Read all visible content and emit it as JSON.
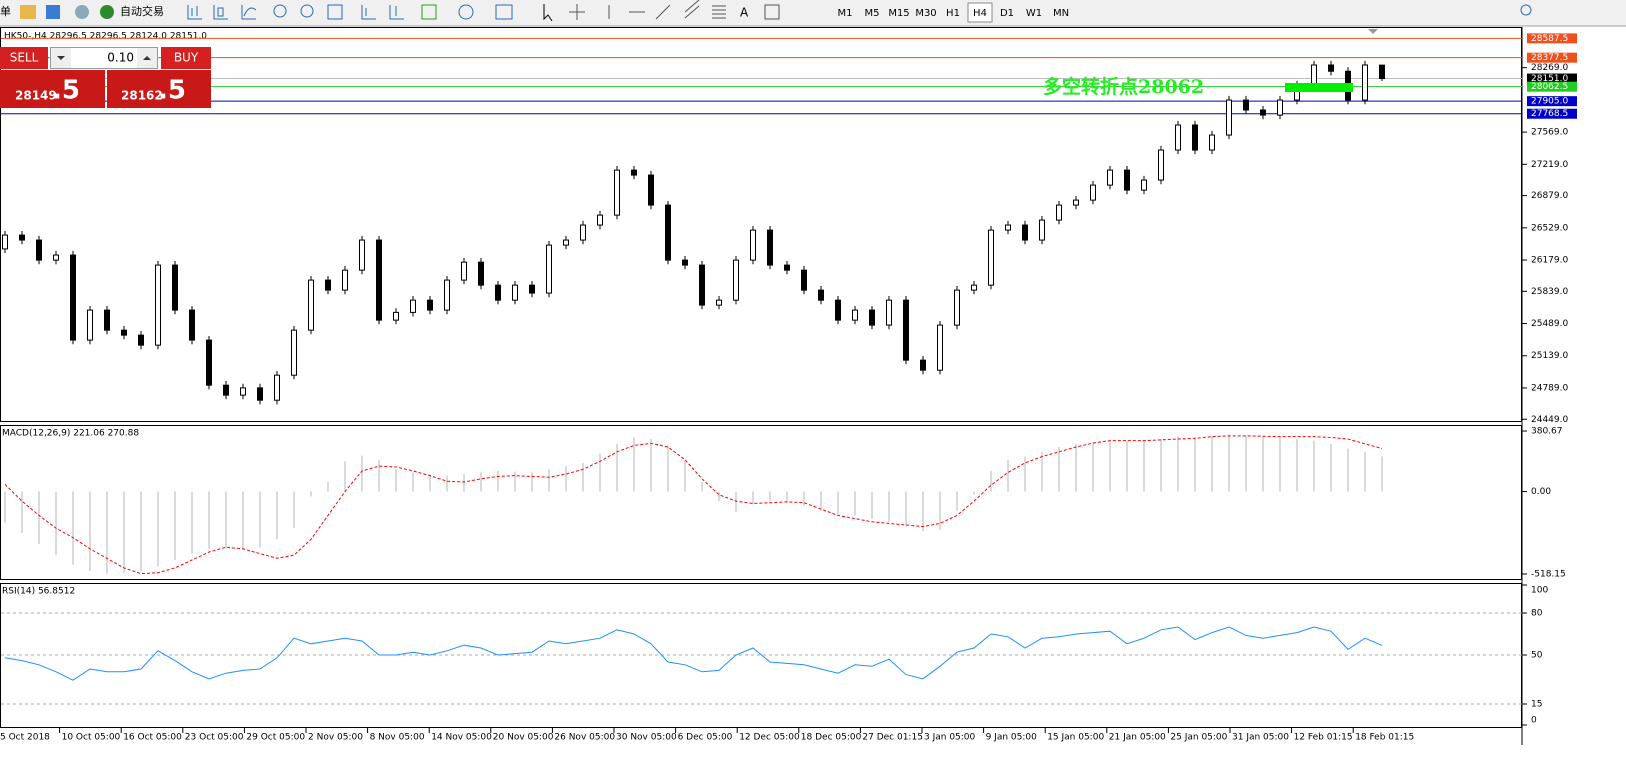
{
  "toolbar": {
    "left_text": "单",
    "auto_trade": "自动交易",
    "timeframes": [
      "M1",
      "M5",
      "M15",
      "M30",
      "H1",
      "H4",
      "D1",
      "W1",
      "MN"
    ],
    "active_timeframe": "H4"
  },
  "trade_panel": {
    "sell": "SELL",
    "buy": "BUY",
    "volume": "0.10",
    "sell_main": "28149",
    "sell_frac": ".5",
    "buy_main": "28162",
    "buy_frac": ".5"
  },
  "chart_data": {
    "type": "candlestick",
    "title": "HK50-,H4  28296.5 28296.5 28124.0 28151.0",
    "ylim": [
      24430,
      28700
    ],
    "yticks": [
      {
        "value": 28269,
        "label": "28269.0"
      },
      {
        "value": 27569,
        "label": "27569.0"
      },
      {
        "value": 27219,
        "label": "27219.0"
      },
      {
        "value": 26879,
        "label": "26879.0"
      },
      {
        "value": 26529,
        "label": "26529.0"
      },
      {
        "value": 26179,
        "label": "26179.0"
      },
      {
        "value": 25839,
        "label": "25839.0"
      },
      {
        "value": 25489,
        "label": "25489.0"
      },
      {
        "value": 25139,
        "label": "25139.0"
      },
      {
        "value": 24789,
        "label": "24789.0"
      },
      {
        "value": 24449,
        "label": "24449.0"
      }
    ],
    "price_lines": [
      {
        "value": 28587.5,
        "color": "#f0501e"
      },
      {
        "value": 28377.5,
        "color": "#f0501e"
      },
      {
        "value": 28151,
        "label": "28151.0",
        "color": "#000000"
      },
      {
        "value": 28062.5,
        "color": "#22cc22"
      },
      {
        "value": 27905,
        "label": "27905.0",
        "color": "#0000cc"
      },
      {
        "value": 27768.5,
        "color": "#0000cc"
      }
    ],
    "annotation": "多空转折点28062",
    "x_labels": [
      "5 Oct 2018",
      "10 Oct 05:00",
      "16 Oct 05:00",
      "23 Oct 05:00",
      "29 Oct 05:00",
      "2 Nov 05:00",
      "8 Nov 05:00",
      "14 Nov 05:00",
      "20 Nov 05:00",
      "26 Nov 05:00",
      "30 Nov 05:00",
      "6 Dec 05:00",
      "12 Dec 05:00",
      "18 Dec 05:00",
      "27 Dec 01:15",
      "3 Jan 05:00",
      "9 Jan 05:00",
      "15 Jan 05:00",
      "21 Jan 05:00",
      "25 Jan 05:00",
      "31 Jan 05:00",
      "12 Feb 01:15",
      "18 Feb 01:15"
    ],
    "open": [
      26300,
      26450,
      26396,
      26178,
      26233,
      25309,
      25635,
      25417,
      25363,
      25254,
      26124,
      25635,
      25309,
      24819,
      24711,
      24790,
      24656,
      24928,
      25417,
      25961,
      25852,
      26069,
      26396,
      25526,
      25610,
      25743,
      25635,
      25961,
      26156,
      25906,
      25743,
      25906,
      25820,
      26341,
      26396,
      26559,
      26667,
      27156,
      27102,
      26776,
      26178,
      26124,
      25689,
      25743,
      26178,
      26504,
      26124,
      26069,
      25852,
      25743,
      25526,
      25635,
      25472,
      25743,
      25091,
      24982,
      25472,
      25852,
      25906,
      26504,
      26559,
      26396,
      26613,
      26776,
      26830,
      26993,
      27156,
      26939,
      27048,
      27374,
      27646,
      27374,
      27537,
      27917,
      27809,
      27754,
      27917,
      28080,
      28298,
      28230,
      27917,
      28296.5
    ],
    "high": [
      26495,
      26495,
      26441,
      26278,
      26278,
      25680,
      25680,
      25462,
      25408,
      26169,
      26169,
      25680,
      25354,
      24864,
      24835,
      24835,
      24973,
      25462,
      26006,
      26006,
      26114,
      26441,
      26441,
      25655,
      25788,
      25788,
      26006,
      26201,
      26201,
      25951,
      25951,
      25951,
      26386,
      26441,
      26604,
      26712,
      27201,
      27201,
      27147,
      26821,
      26223,
      26169,
      25788,
      26223,
      26549,
      26549,
      26169,
      26114,
      25897,
      25788,
      25680,
      25680,
      25788,
      25788,
      25136,
      25517,
      25897,
      25951,
      26549,
      26604,
      26604,
      26658,
      26821,
      26875,
      27038,
      27201,
      27201,
      27093,
      27419,
      27691,
      27691,
      27582,
      27962,
      27962,
      27854,
      27962,
      28125,
      28343,
      28343,
      28275,
      28343,
      28296.5
    ],
    "low": [
      26255,
      26351,
      26133,
      26133,
      25264,
      25264,
      25372,
      25318,
      25209,
      25209,
      25590,
      25264,
      24774,
      24666,
      24666,
      24611,
      24611,
      24883,
      25372,
      25807,
      25807,
      26024,
      25481,
      25481,
      25565,
      25590,
      25590,
      25916,
      25861,
      25698,
      25698,
      25775,
      25775,
      26296,
      26351,
      26514,
      26622,
      27057,
      26731,
      26133,
      26079,
      25644,
      25644,
      25698,
      26133,
      26079,
      26024,
      25807,
      25698,
      25481,
      25481,
      25427,
      25427,
      25046,
      24937,
      24937,
      25427,
      25807,
      25861,
      26459,
      26351,
      26351,
      26568,
      26731,
      26785,
      26948,
      26894,
      26894,
      27003,
      27329,
      27329,
      27329,
      27492,
      27764,
      27709,
      27709,
      27872,
      28035,
      28185,
      27872,
      27872,
      28124
    ],
    "close": [
      26450,
      26396,
      26178,
      26233,
      25309,
      25635,
      25417,
      25363,
      25254,
      26124,
      25635,
      25309,
      24819,
      24711,
      24790,
      24656,
      24928,
      25417,
      25961,
      25852,
      26069,
      26396,
      25526,
      25610,
      25743,
      25635,
      25961,
      26156,
      25906,
      25743,
      25906,
      25820,
      26341,
      26396,
      26559,
      26667,
      27156,
      27102,
      26776,
      26178,
      26124,
      25689,
      25743,
      26178,
      26504,
      26124,
      26069,
      25852,
      25743,
      25526,
      25635,
      25472,
      25743,
      25091,
      24982,
      25472,
      25852,
      25906,
      26504,
      26559,
      26396,
      26613,
      26776,
      26830,
      26993,
      27156,
      26939,
      27048,
      27374,
      27646,
      27374,
      27537,
      27917,
      27809,
      27754,
      27917,
      28080,
      28298,
      28230,
      27917,
      28298,
      28151
    ],
    "macd": {
      "title": "MACD(12,26,9) 221.06 270.88",
      "ylim": [
        -518.15,
        380.67
      ],
      "yticks": [
        380.67,
        {
          "value": 0,
          "label": "0.00"
        },
        -518.15
      ],
      "hist_color": "#b4b4b4",
      "signal_color": "#ff0000",
      "hist": [
        -194,
        -260,
        -330,
        -400,
        -460,
        -500,
        -516,
        -510,
        -500,
        -470,
        -430,
        -390,
        -360,
        -355,
        -360,
        -350,
        -300,
        -230,
        -30,
        60,
        190,
        226,
        200,
        140,
        120,
        110,
        100,
        110,
        120,
        130,
        125,
        120,
        140,
        160,
        180,
        240,
        300,
        342,
        330,
        290,
        200,
        60,
        -60,
        -129,
        -80,
        -60,
        -70,
        -90,
        -120,
        -140,
        -150,
        -170,
        -190,
        -220,
        -250,
        -240,
        -120,
        -20,
        130,
        200,
        220,
        250,
        280,
        300,
        310,
        320,
        315,
        320,
        330,
        345,
        340,
        345,
        360,
        350,
        345,
        340,
        330,
        320,
        300,
        270,
        250,
        221.06
      ],
      "signal": [
        45,
        -60,
        -150,
        -230,
        -290,
        -360,
        -420,
        -480,
        -516,
        -510,
        -480,
        -430,
        -380,
        -350,
        -360,
        -390,
        -419,
        -400,
        -300,
        -150,
        0,
        129,
        160,
        155,
        130,
        100,
        65,
        60,
        80,
        95,
        100,
        95,
        90,
        110,
        140,
        190,
        250,
        290,
        303,
        280,
        200,
        80,
        -20,
        -60,
        -75,
        -70,
        -65,
        -70,
        -110,
        -150,
        -170,
        -190,
        -200,
        -210,
        -220,
        -200,
        -150,
        -60,
        40,
        120,
        180,
        220,
        250,
        280,
        305,
        320,
        320,
        320,
        325,
        330,
        335,
        345,
        350,
        350,
        348,
        345,
        345,
        345,
        340,
        330,
        300,
        270.88
      ]
    },
    "rsi": {
      "title": "RSI(14) 56.8512",
      "ylim": [
        0,
        100
      ],
      "yticks": [
        100,
        80,
        50,
        15,
        0
      ],
      "levels": [
        80,
        50,
        15
      ],
      "color": "#1e90ff",
      "values": [
        48,
        46,
        43,
        38,
        32,
        40,
        38,
        38,
        40,
        53,
        46,
        38,
        33,
        37,
        39,
        40,
        48,
        62,
        58,
        60,
        62,
        60,
        50,
        50,
        52,
        50,
        53,
        57,
        55,
        50,
        51,
        52,
        60,
        58,
        60,
        62,
        68,
        65,
        58,
        45,
        43,
        38,
        39,
        50,
        55,
        45,
        44,
        43,
        40,
        37,
        43,
        42,
        47,
        36,
        33,
        42,
        52,
        55,
        65,
        63,
        55,
        62,
        63,
        65,
        66,
        67,
        58,
        62,
        68,
        70,
        61,
        66,
        70,
        64,
        62,
        64,
        66,
        70,
        67,
        54,
        62,
        56.8512
      ]
    }
  }
}
